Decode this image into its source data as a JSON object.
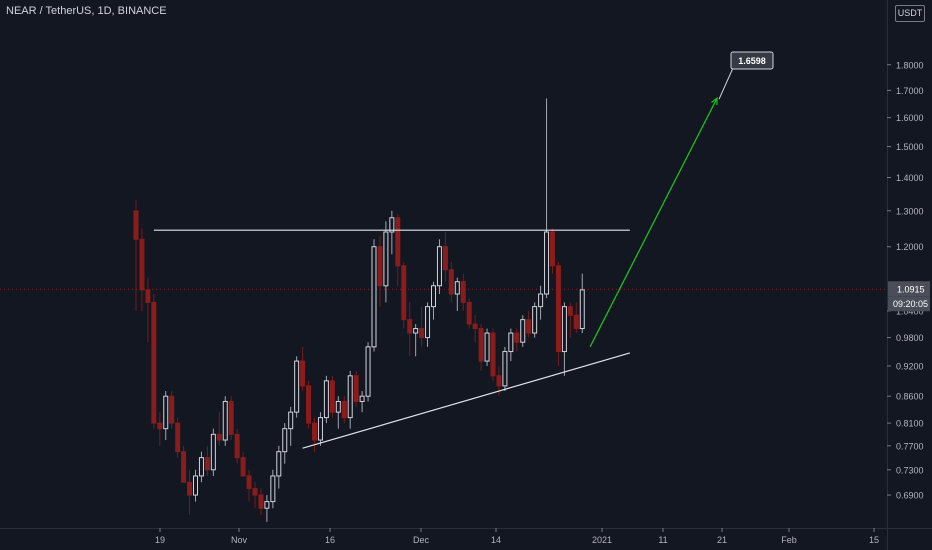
{
  "header": {
    "title": "NEAR / TetherUS, 1D, BINANCE"
  },
  "toolbar": {
    "currency_label": "USDT"
  },
  "price_scale": {
    "ticks": [
      "1.8000",
      "1.7000",
      "1.6000",
      "1.5000",
      "1.4000",
      "1.3000",
      "1.2000",
      "1.0400",
      "0.9800",
      "0.9200",
      "0.8600",
      "0.8100",
      "0.7700",
      "0.7300",
      "0.6900"
    ],
    "last_price": "1.0915",
    "countdown": "09:20:05"
  },
  "colors": {
    "up": "#d1d4dc",
    "down": "#8a1c1c",
    "wick_up": "#a3a6af",
    "wick_down": "#7a1a1a",
    "arrow": "#1bbf1b",
    "line": "#e0e3eb",
    "bg": "#131722",
    "label_bg": "#363a45"
  },
  "annotation": {
    "target_label": "1.6598"
  },
  "chart_data": {
    "type": "candlestick",
    "title": "NEAR / TetherUS, 1D, BINANCE",
    "x_ticks": [
      "19",
      "Nov",
      "16",
      "Dec",
      "14",
      "2021",
      "11",
      "21",
      "Feb",
      "15"
    ],
    "y_scale": "log",
    "ylim": [
      0.66,
      1.9
    ],
    "last_price": 1.0915,
    "start_date": "2020-10-14",
    "candles": [
      [
        1.3,
        1.33,
        1.04,
        1.22
      ],
      [
        1.22,
        1.25,
        1.04,
        1.09
      ],
      [
        1.09,
        1.12,
        0.97,
        1.06
      ],
      [
        1.06,
        1.08,
        0.8,
        0.81
      ],
      [
        0.81,
        0.83,
        0.77,
        0.8
      ],
      [
        0.8,
        0.87,
        0.78,
        0.86
      ],
      [
        0.86,
        0.87,
        0.8,
        0.81
      ],
      [
        0.81,
        0.82,
        0.75,
        0.76
      ],
      [
        0.76,
        0.77,
        0.71,
        0.71
      ],
      [
        0.71,
        0.73,
        0.66,
        0.69
      ],
      [
        0.69,
        0.73,
        0.68,
        0.72
      ],
      [
        0.72,
        0.76,
        0.71,
        0.75
      ],
      [
        0.75,
        0.77,
        0.72,
        0.73
      ],
      [
        0.73,
        0.8,
        0.72,
        0.79
      ],
      [
        0.79,
        0.83,
        0.77,
        0.78
      ],
      [
        0.78,
        0.86,
        0.77,
        0.85
      ],
      [
        0.85,
        0.86,
        0.78,
        0.79
      ],
      [
        0.79,
        0.8,
        0.74,
        0.75
      ],
      [
        0.75,
        0.76,
        0.72,
        0.72
      ],
      [
        0.72,
        0.73,
        0.68,
        0.7
      ],
      [
        0.7,
        0.71,
        0.67,
        0.69
      ],
      [
        0.69,
        0.7,
        0.66,
        0.67
      ],
      [
        0.67,
        0.69,
        0.65,
        0.68
      ],
      [
        0.68,
        0.73,
        0.67,
        0.72
      ],
      [
        0.72,
        0.77,
        0.7,
        0.76
      ],
      [
        0.76,
        0.81,
        0.74,
        0.8
      ],
      [
        0.8,
        0.84,
        0.77,
        0.83
      ],
      [
        0.83,
        0.94,
        0.82,
        0.93
      ],
      [
        0.93,
        0.96,
        0.87,
        0.88
      ],
      [
        0.88,
        0.89,
        0.8,
        0.81
      ],
      [
        0.81,
        0.82,
        0.76,
        0.78
      ],
      [
        0.78,
        0.83,
        0.77,
        0.82
      ],
      [
        0.82,
        0.9,
        0.81,
        0.89
      ],
      [
        0.89,
        0.9,
        0.82,
        0.83
      ],
      [
        0.83,
        0.86,
        0.8,
        0.85
      ],
      [
        0.85,
        0.86,
        0.81,
        0.82
      ],
      [
        0.82,
        0.91,
        0.8,
        0.9
      ],
      [
        0.9,
        0.91,
        0.84,
        0.85
      ],
      [
        0.85,
        0.87,
        0.83,
        0.86
      ],
      [
        0.86,
        0.97,
        0.85,
        0.96
      ],
      [
        0.96,
        1.22,
        0.95,
        1.2
      ],
      [
        1.2,
        1.23,
        1.05,
        1.1
      ],
      [
        1.1,
        1.27,
        1.06,
        1.24
      ],
      [
        1.24,
        1.3,
        1.18,
        1.28
      ],
      [
        1.28,
        1.29,
        1.1,
        1.15
      ],
      [
        1.15,
        1.16,
        1.0,
        1.02
      ],
      [
        1.02,
        1.06,
        0.94,
        0.99
      ],
      [
        0.99,
        1.01,
        0.94,
        1.0
      ],
      [
        1.0,
        1.05,
        0.96,
        0.98
      ],
      [
        0.98,
        1.06,
        0.96,
        1.05
      ],
      [
        1.05,
        1.11,
        1.02,
        1.1
      ],
      [
        1.1,
        1.22,
        1.08,
        1.2
      ],
      [
        1.2,
        1.24,
        1.11,
        1.14
      ],
      [
        1.14,
        1.16,
        1.06,
        1.08
      ],
      [
        1.08,
        1.12,
        1.04,
        1.11
      ],
      [
        1.11,
        1.13,
        1.04,
        1.06
      ],
      [
        1.06,
        1.07,
        1.0,
        1.01
      ],
      [
        1.01,
        1.03,
        0.97,
        1.0
      ],
      [
        1.0,
        1.01,
        0.91,
        0.93
      ],
      [
        0.93,
        1.0,
        0.92,
        0.99
      ],
      [
        0.99,
        1.0,
        0.89,
        0.9
      ],
      [
        0.9,
        0.92,
        0.86,
        0.88
      ],
      [
        0.88,
        0.96,
        0.87,
        0.95
      ],
      [
        0.95,
        1.0,
        0.93,
        0.99
      ],
      [
        0.99,
        1.0,
        0.95,
        0.97
      ],
      [
        0.97,
        1.03,
        0.96,
        1.02
      ],
      [
        1.02,
        1.04,
        0.98,
        0.99
      ],
      [
        0.99,
        1.06,
        0.98,
        1.05
      ],
      [
        1.05,
        1.1,
        1.02,
        1.08
      ],
      [
        1.08,
        1.67,
        1.07,
        1.24
      ],
      [
        1.24,
        1.25,
        1.13,
        1.15
      ],
      [
        1.15,
        1.16,
        0.92,
        0.95
      ],
      [
        0.95,
        1.06,
        0.9,
        1.05
      ],
      [
        1.05,
        1.06,
        0.98,
        1.03
      ],
      [
        1.03,
        1.06,
        0.99,
        1.0
      ],
      [
        1.0,
        1.13,
        0.99,
        1.09
      ]
    ],
    "lines": [
      {
        "name": "resistance",
        "from": [
          "2020-10-17",
          1.245
        ],
        "to": [
          "2021-01-05",
          1.245
        ]
      },
      {
        "name": "support",
        "from": [
          "2020-11-11",
          0.766
        ],
        "to": [
          "2021-01-05",
          0.947
        ]
      }
    ],
    "arrow": {
      "from": [
        "2020-12-31",
        0.96
      ],
      "to": [
        "2021-01-21",
        1.6598
      ]
    }
  }
}
